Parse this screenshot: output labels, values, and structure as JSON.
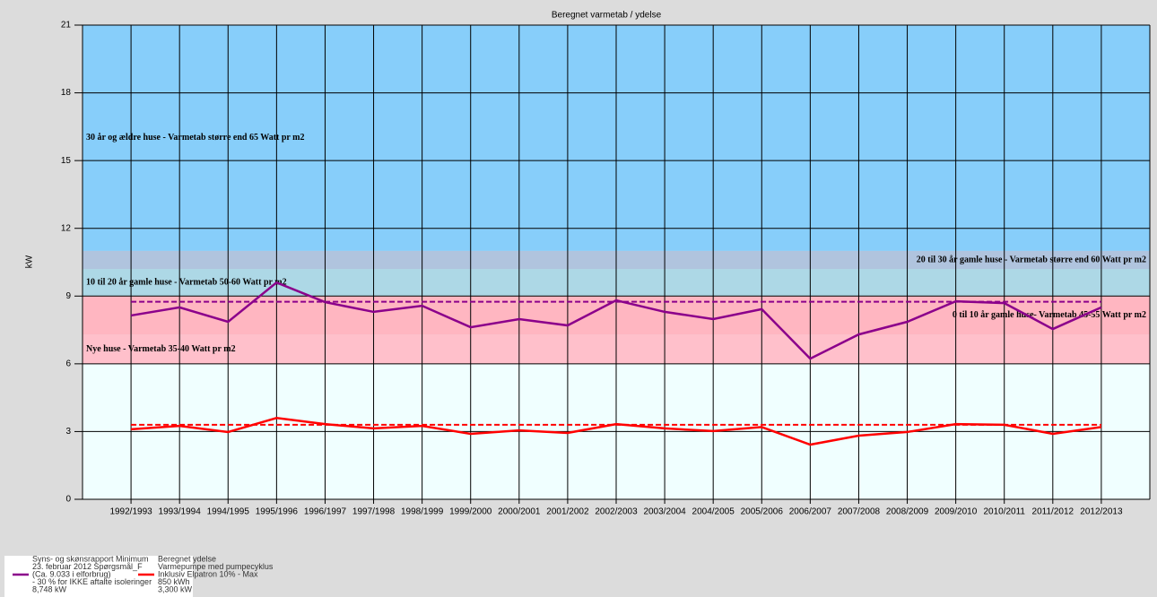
{
  "chart_data": {
    "type": "line",
    "title": "Beregnet varmetab / ydelse",
    "y_label": "kW",
    "categories": [
      "1992/1993",
      "1993/1994",
      "1994/1995",
      "1995/1996",
      "1996/1997",
      "1997/1998",
      "1998/1999",
      "1999/2000",
      "2000/2001",
      "2001/2002",
      "2002/2003",
      "2003/2004",
      "2004/2005",
      "2005/2006",
      "2006/2007",
      "2007/2008",
      "2008/2009",
      "2009/2010",
      "2010/2011",
      "2011/2012",
      "2012/2013"
    ],
    "ylim": [
      0,
      21
    ],
    "yticks": [
      0,
      3,
      6,
      9,
      12,
      15,
      18,
      21
    ],
    "grid": true,
    "bands": [
      {
        "from": 0,
        "to": 6,
        "color": "#f0ffff"
      },
      {
        "from": 6,
        "to": 7.3,
        "color": "#ffc0cb",
        "label": "Nye huse - Varmetab 35-40 Watt pr m2",
        "align": "left"
      },
      {
        "from": 7.3,
        "to": 9,
        "color": "#ffb6c1",
        "label": "0 til 10 år gamle huse- Varmetab 45-55 Watt pr m2",
        "align": "right"
      },
      {
        "from": 9,
        "to": 10.2,
        "color": "#add8e6",
        "label": "10 til 20 år gamle huse - Varmetab 50-60 Watt pr m2",
        "align": "left"
      },
      {
        "from": 10.2,
        "to": 11,
        "color": "#b0c4de",
        "label": "20 til 30 år gamle huse - Varmetab større end 60 Watt pr m2",
        "align": "right"
      },
      {
        "from": 11,
        "to": 21,
        "color": "#87cefa",
        "label": "30 år og ældre huse - Varmetab større end 65 Watt pr m2",
        "align": "left"
      }
    ],
    "reference_lines": [
      {
        "value": 8.748,
        "color": "#8b008b"
      },
      {
        "value": 3.3,
        "color": "#ff0000"
      }
    ],
    "series": [
      {
        "name": [
          "Syns- og skønsrapport Minimum",
          "23. februar 2012 Spørgsmål_F",
          "(Ca. 9.033 i elforbrug)",
          "- 30 % for IKKE aftalte isoleringer",
          "8,748 kW"
        ],
        "color": "#8b008b",
        "values": [
          8.14,
          8.5,
          7.86,
          9.6,
          8.73,
          8.3,
          8.57,
          7.62,
          7.98,
          7.7,
          8.81,
          8.3,
          7.98,
          8.42,
          6.23,
          7.3,
          7.86,
          8.77,
          8.69,
          7.54,
          8.5
        ]
      },
      {
        "name": [
          "Beregnet ydelse",
          "Varmepumpe med pumpecyklus",
          "Inklusiv Elpatron 10% - Max",
          "850 kWh",
          "3,300 kW"
        ],
        "color": "#ff0000",
        "values": [
          3.1,
          3.25,
          2.98,
          3.6,
          3.33,
          3.14,
          3.25,
          2.9,
          3.05,
          2.94,
          3.33,
          3.14,
          3.02,
          3.2,
          2.42,
          2.82,
          2.98,
          3.33,
          3.3,
          2.9,
          3.2
        ]
      }
    ]
  }
}
